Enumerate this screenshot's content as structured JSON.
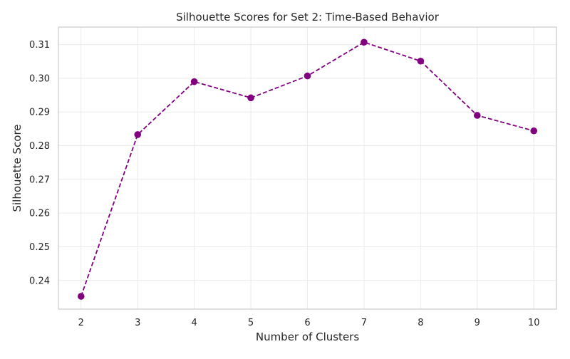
{
  "chart_data": {
    "type": "line",
    "title": "Silhouette Scores for Set 2: Time-Based Behavior",
    "xlabel": "Number of Clusters",
    "ylabel": "Silhouette Score",
    "x": [
      2,
      3,
      4,
      5,
      6,
      7,
      8,
      9,
      10
    ],
    "series": [
      {
        "values": [
          0.2353,
          0.2833,
          0.299,
          0.2942,
          0.3007,
          0.3107,
          0.3051,
          0.289,
          0.2844
        ],
        "color": "#800080",
        "line_style": "dashed",
        "marker": "circle"
      }
    ],
    "x_ticks": [
      "2",
      "3",
      "4",
      "5",
      "6",
      "7",
      "8",
      "9",
      "10"
    ],
    "y_ticks": [
      0.24,
      0.25,
      0.26,
      0.27,
      0.28,
      0.29,
      0.3,
      0.31
    ],
    "y_tick_labels": [
      "0.24",
      "0.25",
      "0.26",
      "0.27",
      "0.28",
      "0.29",
      "0.30",
      "0.31"
    ],
    "xlim": [
      1.6,
      10.4
    ],
    "ylim": [
      0.2315,
      0.3152
    ],
    "grid": true,
    "colors": {
      "axes_edge": "#cccccc",
      "grid": "#ebebeb",
      "line": "#800080",
      "text": "#262626"
    }
  }
}
